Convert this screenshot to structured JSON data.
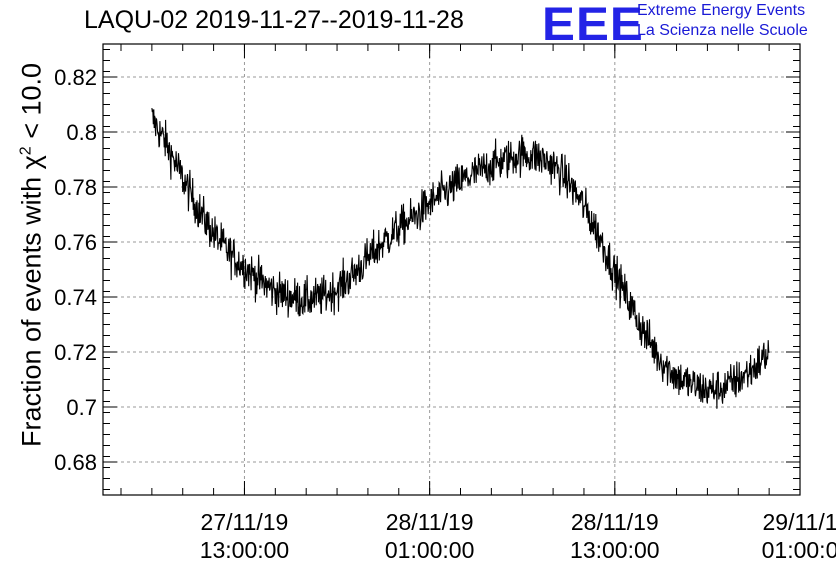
{
  "chart_data": {
    "type": "line",
    "title": "LAQU-02 2019-11-27--2019-11-28",
    "ylabel": {
      "prefix": "Fraction of events with ",
      "symbol": "χ",
      "exponent": "2",
      "suffix": " < 10.0"
    },
    "xlabel": "",
    "y_ticks": [
      "0.68",
      "0.7",
      "0.72",
      "0.74",
      "0.76",
      "0.78",
      "0.8",
      "0.82"
    ],
    "ylim": [
      0.668,
      0.832
    ],
    "x_ticks": [
      {
        "date": "27/11/19",
        "time": "13:00:00"
      },
      {
        "date": "28/11/19",
        "time": "01:00:00"
      },
      {
        "date": "28/11/19",
        "time": "13:00:00"
      },
      {
        "date": "29/11/1",
        "time": "01:00:0"
      }
    ],
    "xlim": [
      "2019-11-27 03:50",
      "2019-11-29 01:00"
    ],
    "grid": true,
    "series": [
      {
        "color": "#000000",
        "x": [
          "2019-11-27 07:00",
          "2019-11-27 08:00",
          "2019-11-27 09:00",
          "2019-11-27 10:00",
          "2019-11-27 11:00",
          "2019-11-27 12:00",
          "2019-11-27 13:00",
          "2019-11-27 14:00",
          "2019-11-27 15:00",
          "2019-11-27 16:00",
          "2019-11-27 17:00",
          "2019-11-27 18:00",
          "2019-11-27 19:00",
          "2019-11-27 20:00",
          "2019-11-27 21:00",
          "2019-11-27 22:00",
          "2019-11-27 23:00",
          "2019-11-28 00:00",
          "2019-11-28 01:00",
          "2019-11-28 02:00",
          "2019-11-28 03:00",
          "2019-11-28 04:00",
          "2019-11-28 05:00",
          "2019-11-28 06:00",
          "2019-11-28 07:00",
          "2019-11-28 08:00",
          "2019-11-28 09:00",
          "2019-11-28 10:00",
          "2019-11-28 11:00",
          "2019-11-28 12:00",
          "2019-11-28 13:00",
          "2019-11-28 14:00",
          "2019-11-28 15:00",
          "2019-11-28 16:00",
          "2019-11-28 17:00",
          "2019-11-28 18:00",
          "2019-11-28 19:00",
          "2019-11-28 20:00",
          "2019-11-28 21:00",
          "2019-11-28 22:00",
          "2019-11-28 23:00"
        ],
        "y": [
          0.805,
          0.795,
          0.783,
          0.772,
          0.763,
          0.756,
          0.751,
          0.746,
          0.742,
          0.74,
          0.739,
          0.74,
          0.743,
          0.748,
          0.754,
          0.76,
          0.765,
          0.769,
          0.774,
          0.778,
          0.782,
          0.785,
          0.788,
          0.79,
          0.792,
          0.791,
          0.788,
          0.782,
          0.773,
          0.762,
          0.749,
          0.737,
          0.726,
          0.717,
          0.711,
          0.708,
          0.706,
          0.707,
          0.71,
          0.714,
          0.72
        ],
        "noise_amplitude": 0.008
      }
    ]
  },
  "branding": {
    "mark": "EEE",
    "line1": "Extreme Energy Events",
    "line2": "La Scienza nelle Scuole",
    "color": "#2323e6"
  }
}
